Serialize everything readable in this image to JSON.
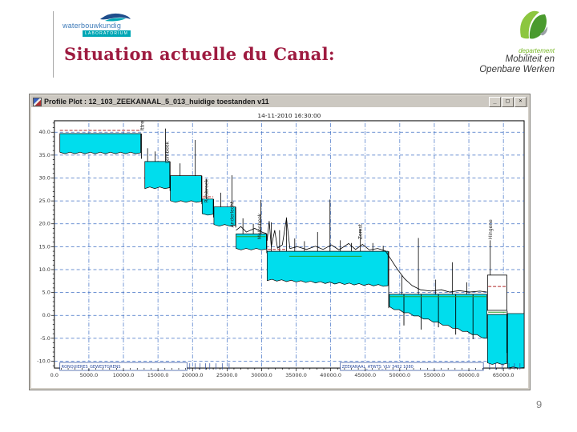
{
  "slide": {
    "title": "Situation actuelle du Canal:",
    "title_color": "#9e1b40",
    "page_number": "9",
    "logo_left": {
      "line1": "waterbouwkundig",
      "line2": "LABORATORIUM"
    },
    "logo_right": {
      "dept": "departement",
      "line1": "Mobiliteit en",
      "line2": "Openbare Werken"
    }
  },
  "window": {
    "title": "Profile Plot : 12_103_ZEEKANAAL_5_013_huidige toestanden v11",
    "controls": [
      {
        "name": "minimize",
        "glyph": "_"
      },
      {
        "name": "maximize",
        "glyph": "□"
      },
      {
        "name": "close",
        "glyph": "×"
      }
    ]
  },
  "chart_data": {
    "type": "area",
    "title": "14-11-2010 16:30:00",
    "xlabel": "",
    "ylabel": "",
    "xlim": [
      0,
      68000
    ],
    "ylim": [
      -11.5,
      42.5
    ],
    "grid": true,
    "water_color": "#00dded",
    "grid_color": "#3f6fc4",
    "red_color": "#b02828",
    "green_color": "#2ba02b",
    "box_color": "#2a4a9c",
    "x_ticks": [
      {
        "v": 0,
        "t": "0.0"
      },
      {
        "v": 5000,
        "t": "5000.0"
      },
      {
        "v": 10000,
        "t": "10000.0"
      },
      {
        "v": 15000,
        "t": "15000.0"
      },
      {
        "v": 20000,
        "t": "20000.0"
      },
      {
        "v": 25000,
        "t": "25000.0"
      },
      {
        "v": 30000,
        "t": "30000.0"
      },
      {
        "v": 35000,
        "t": "35000.0"
      },
      {
        "v": 40000,
        "t": "40000.0"
      },
      {
        "v": 45000,
        "t": "45000.0"
      },
      {
        "v": 50000,
        "t": "50000.0"
      },
      {
        "v": 55000,
        "t": "55000.0"
      },
      {
        "v": 60000,
        "t": "60000.0"
      },
      {
        "v": 65000,
        "t": "65000.0"
      }
    ],
    "y_ticks": [
      {
        "v": 40,
        "t": "40.0"
      },
      {
        "v": 35,
        "t": "35.0"
      },
      {
        "v": 30,
        "t": "30.0"
      },
      {
        "v": 25,
        "t": "25.0"
      },
      {
        "v": 20,
        "t": "20.0"
      },
      {
        "v": 15,
        "t": "15.0"
      },
      {
        "v": 10,
        "t": "10.0"
      },
      {
        "v": 5,
        "t": "5.0"
      },
      {
        "v": 0,
        "t": "0.0"
      },
      {
        "v": -5,
        "t": "-5.0"
      },
      {
        "v": -10,
        "t": "-10.0"
      }
    ],
    "reaches": [
      {
        "x0": 800,
        "x1": 12500,
        "level": 39.7,
        "bed": 35.5
      },
      {
        "x0": 13100,
        "x1": 16700,
        "level": 33.6,
        "bed": 27.9
      },
      {
        "x0": 16800,
        "x1": 21300,
        "level": 30.5,
        "bed": 24.9
      },
      {
        "x0": 21400,
        "x1": 23000,
        "level": 25.4,
        "bed": 22.1
      },
      {
        "x0": 23100,
        "x1": 26200,
        "level": 23.7,
        "bed": 19.7
      },
      {
        "x0": 26300,
        "x1": 30700,
        "level": 17.8,
        "bed": 14.5
      },
      {
        "x0": 30800,
        "x1": 48300,
        "level": 14.0,
        "bed": 7.8,
        "bed_end": 6.5
      },
      {
        "x0": 48500,
        "x1": 62600,
        "level": 4.6,
        "bed": 1.8,
        "bed_end": -5.0
      },
      {
        "x0": 62700,
        "x1": 65500,
        "level": 0.2,
        "bed": -10.5
      },
      {
        "x0": 65600,
        "x1": 68000,
        "level": 0.4,
        "bed": -11.4
      }
    ],
    "locks": [
      {
        "name": "Ittre",
        "x": 12700,
        "y": 40.3
      },
      {
        "name": "Lembeek",
        "x": 16300,
        "y": 33.2
      },
      {
        "name": "Ruisbroek",
        "x": 22000,
        "y": 24.6
      },
      {
        "name": "Anderlecht",
        "x": 25700,
        "y": 19.2
      },
      {
        "name": "Molenbeek",
        "x": 29700,
        "y": 16.6
      },
      {
        "name": "Zemst",
        "x": 44300,
        "y": 16.6
      },
      {
        "name": "Hingene",
        "x": 63100,
        "y": 16.6
      }
    ],
    "lock_chamber": {
      "x0": 62700,
      "x1": 65500,
      "top": 8.8,
      "bottom": 1.1
    },
    "spikes_up": [
      [
        13500,
        33.6,
        36.5
      ],
      [
        14600,
        33.6,
        35.8
      ],
      [
        16100,
        33.6,
        40.8
      ],
      [
        18200,
        30.5,
        33.2
      ],
      [
        20400,
        30.5,
        38.3
      ],
      [
        22000,
        25.4,
        29.8
      ],
      [
        24100,
        23.7,
        26.8
      ],
      [
        25700,
        23.7,
        30.6
      ],
      [
        27300,
        17.8,
        21.2
      ],
      [
        28800,
        17.8,
        20.0
      ],
      [
        29900,
        17.8,
        25.2
      ],
      [
        31400,
        14.0,
        20.3
      ],
      [
        32600,
        14.0,
        18.6
      ],
      [
        33600,
        14.0,
        21.4
      ],
      [
        34800,
        14.0,
        16.8
      ],
      [
        36200,
        14.0,
        16.2
      ],
      [
        38100,
        14.0,
        18.2
      ],
      [
        39900,
        14.0,
        25.3
      ],
      [
        41400,
        14.0,
        16.4
      ],
      [
        43000,
        14.0,
        15.8
      ],
      [
        44300,
        14.0,
        18.8
      ],
      [
        46100,
        14.0,
        15.8
      ],
      [
        47600,
        14.0,
        15.2
      ],
      [
        50300,
        4.6,
        8.8
      ],
      [
        52700,
        4.6,
        16.9
      ],
      [
        55200,
        4.6,
        7.8
      ],
      [
        57600,
        4.6,
        11.6
      ],
      [
        59700,
        4.6,
        7.2
      ],
      [
        63100,
        8.8,
        16.4
      ]
    ],
    "spikes_down": [
      [
        12600,
        39.7,
        34.2
      ],
      [
        16750,
        33.6,
        27.2
      ],
      [
        21350,
        30.5,
        24.3
      ],
      [
        23050,
        25.4,
        21.4
      ],
      [
        26250,
        23.7,
        19.2
      ],
      [
        30750,
        17.8,
        13.6
      ],
      [
        48400,
        14.0,
        1.6
      ],
      [
        50600,
        4.6,
        -2.2
      ],
      [
        53100,
        4.6,
        -3.1
      ],
      [
        55600,
        4.6,
        -2.6
      ],
      [
        58100,
        4.6,
        -4.2
      ],
      [
        60600,
        4.6,
        -5.2
      ],
      [
        65550,
        1.0,
        -8.2
      ]
    ],
    "terrain": [
      [
        [
          26300,
          18.6
        ],
        [
          27000,
          19.4
        ],
        [
          27800,
          18.2
        ],
        [
          29000,
          19.0
        ],
        [
          30200,
          18.1
        ],
        [
          30700,
          17.9
        ]
      ],
      [
        [
          30800,
          16.3
        ],
        [
          31100,
          20.6
        ],
        [
          31400,
          15.0
        ],
        [
          31900,
          18.6
        ],
        [
          32300,
          14.7
        ],
        [
          33000,
          15.4
        ],
        [
          33600,
          21.2
        ],
        [
          34100,
          14.6
        ],
        [
          35200,
          15.0
        ],
        [
          36500,
          14.4
        ],
        [
          37800,
          15.1
        ],
        [
          38900,
          14.4
        ],
        [
          40100,
          15.4
        ],
        [
          41200,
          14.3
        ],
        [
          42600,
          15.7
        ],
        [
          43600,
          14.4
        ],
        [
          44600,
          15.5
        ],
        [
          45600,
          14.3
        ],
        [
          46800,
          14.6
        ],
        [
          47900,
          14.1
        ],
        [
          48400,
          13.0
        ],
        [
          49600,
          10.2
        ],
        [
          50700,
          8.0
        ],
        [
          51800,
          6.5
        ],
        [
          53000,
          5.6
        ],
        [
          54500,
          5.3
        ],
        [
          56000,
          5.6
        ],
        [
          57200,
          5.1
        ],
        [
          58600,
          5.4
        ],
        [
          60100,
          5.1
        ],
        [
          61600,
          5.3
        ],
        [
          62600,
          5.1
        ]
      ]
    ],
    "green_levels": [
      [
        26400,
        30600,
        17.2
      ],
      [
        34000,
        44500,
        12.9
      ],
      [
        48600,
        62500,
        4.1
      ],
      [
        62800,
        65400,
        0.7
      ]
    ],
    "red_levels": [
      [
        800,
        12500,
        40.4
      ],
      [
        21500,
        23000,
        25.9
      ],
      [
        30900,
        33600,
        14.4
      ],
      [
        62800,
        65400,
        6.3
      ]
    ],
    "section_boxes": [
      {
        "label": "RONQUIERES_GEWESTGRENS",
        "x0": 800,
        "x1": 19200
      },
      {
        "label": "ZEEKANAAL_ATWTS_VLV 3402 1080",
        "x0": 41400,
        "x1": 62100
      }
    ],
    "bottom_marks": [
      19600,
      20400,
      21100,
      21900,
      22500,
      23400,
      24300,
      25300,
      63000,
      63900,
      64800,
      65800,
      66600,
      67400
    ]
  }
}
